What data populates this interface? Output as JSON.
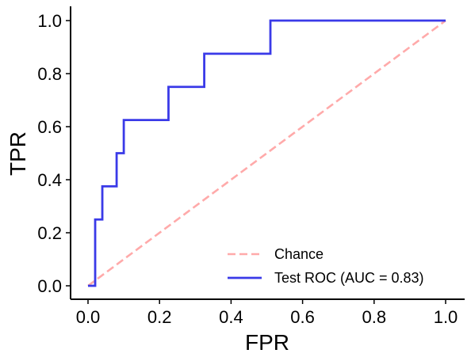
{
  "chart_data": {
    "type": "line",
    "xlabel": "FPR",
    "ylabel": "TPR",
    "xlim": [
      -0.05,
      1.05
    ],
    "ylim": [
      -0.05,
      1.05
    ],
    "xticks": [
      0.0,
      0.2,
      0.4,
      0.6,
      0.8,
      1.0
    ],
    "xtick_labels": [
      "0.0",
      "0.2",
      "0.4",
      "0.6",
      "0.8",
      "1.0"
    ],
    "yticks": [
      0.0,
      0.2,
      0.4,
      0.6,
      0.8,
      1.0
    ],
    "ytick_labels": [
      "0.0",
      "0.2",
      "0.4",
      "0.6",
      "0.8",
      "1.0"
    ],
    "grid": false,
    "legend_position": "lower-right",
    "series": [
      {
        "name": "Chance",
        "style": "dashed",
        "color": "#ffaaaa",
        "x": [
          0.0,
          1.0
        ],
        "y": [
          0.0,
          1.0
        ]
      },
      {
        "name": "Test ROC (AUC = 0.83)",
        "style": "step",
        "color": "#3a3ae8",
        "x": [
          0.0,
          0.02,
          0.02,
          0.04,
          0.04,
          0.08,
          0.08,
          0.1,
          0.1,
          0.225,
          0.225,
          0.325,
          0.325,
          0.51,
          0.51,
          1.0
        ],
        "y": [
          0.0,
          0.0,
          0.25,
          0.25,
          0.375,
          0.375,
          0.5,
          0.5,
          0.625,
          0.625,
          0.75,
          0.75,
          0.875,
          0.875,
          1.0,
          1.0
        ]
      }
    ]
  }
}
